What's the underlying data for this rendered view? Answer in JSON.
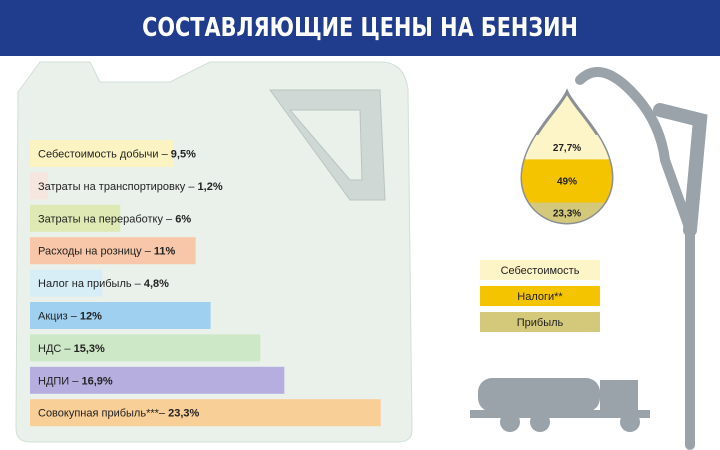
{
  "chart_data": [
    {
      "type": "bar",
      "title": "СОСТАВЛЯЮЩИЕ ЦЕНЫ НА БЕНЗИН",
      "categories": [
        "Себестоимость добычи –",
        "Затраты на транспортировку –",
        "Затраты на переработку –",
        "Расходы на розницу –",
        "Налог на прибыль –",
        "Акциз –",
        "НДС –",
        "НДПИ –",
        "Совокупная прибыль***–"
      ],
      "values": [
        9.5,
        1.2,
        6,
        11,
        4.8,
        12,
        15.3,
        16.9,
        23.3
      ],
      "value_labels": [
        "9,5%",
        "1,2%",
        "6%",
        "11%",
        "4,8%",
        "12%",
        "15,3%",
        "16,9%",
        "23,3%"
      ],
      "colors": [
        "#fbf3c2",
        "#f5e6df",
        "#dfe9b3",
        "#f8c6a8",
        "#d8eef7",
        "#9fd0f0",
        "#cde8c6",
        "#b7aee0",
        "#f9cf98"
      ]
    },
    {
      "type": "pie",
      "categories": [
        "Себестоимость",
        "Налоги**",
        "Прибыль"
      ],
      "values": [
        27.7,
        49,
        23.3
      ],
      "value_labels": [
        "27,7%",
        "49%",
        "23,3%"
      ],
      "colors": [
        "#fdf5c8",
        "#f5c400",
        "#d4c87a"
      ]
    }
  ]
}
